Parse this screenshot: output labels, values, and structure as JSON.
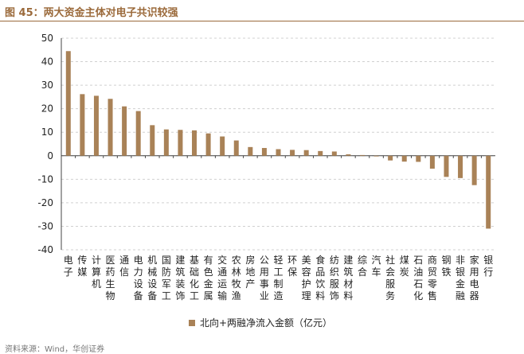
{
  "figure_title": "图 45：两大资金主体对电子共识较强",
  "colors": {
    "bar": "#a98257",
    "title": "#9b6a3b"
  },
  "source_text": "资料来源：Wind，华创证券",
  "chart_data": {
    "type": "bar",
    "title": "",
    "xlabel": "",
    "ylabel": "",
    "ylim": [
      -40,
      50
    ],
    "yticks": [
      50,
      40,
      30,
      20,
      10,
      0,
      -10,
      -20,
      -30,
      -40
    ],
    "grid": true,
    "legend_position": "bottom",
    "categories": [
      "电子",
      "传媒",
      "计算机",
      "医药生物",
      "通信",
      "电力设备",
      "机械设备",
      "国防军工",
      "建筑装饰",
      "基础化工",
      "有色金属",
      "交通运输",
      "农林牧渔",
      "房地产",
      "公用事业",
      "轻工制造",
      "环保",
      "美容护理",
      "食品饮料",
      "纺织服饰",
      "建筑材料",
      "综合",
      "汽车",
      "社会服务",
      "煤炭",
      "石油石化",
      "商贸零售",
      "钢铁",
      "非银金融",
      "家用电器",
      "银行"
    ],
    "series": [
      {
        "name": "北向+两融净流入金额（亿元）",
        "values": [
          44.5,
          26.2,
          25.5,
          24.2,
          21.0,
          19.0,
          13.0,
          11.2,
          11.0,
          10.8,
          9.5,
          8.2,
          6.5,
          3.7,
          3.3,
          2.8,
          2.5,
          2.4,
          2.0,
          1.8,
          0.6,
          0.3,
          -0.3,
          -2.0,
          -2.5,
          -2.6,
          -5.5,
          -9.0,
          -9.5,
          -12.5,
          -31.0
        ]
      }
    ]
  }
}
